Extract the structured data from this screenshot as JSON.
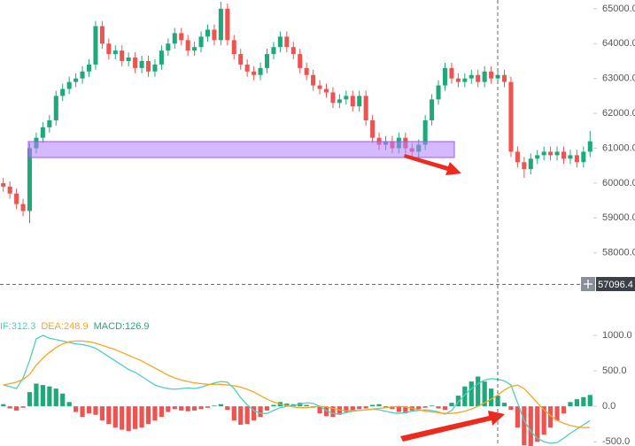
{
  "chart_data": [
    {
      "type": "candlestick",
      "open": [
        60000,
        59900,
        59700,
        59400,
        59200,
        61000,
        61300,
        61600,
        61800,
        62500,
        62700,
        62900,
        63000,
        63200,
        63400,
        64500,
        64000,
        63700,
        63800,
        63500,
        63600,
        63300,
        63500,
        63200,
        63400,
        63800,
        64000,
        64300,
        64100,
        63800,
        63900,
        64200,
        64400,
        64100,
        65000,
        64100,
        63700,
        63400,
        63200,
        63100,
        63300,
        63700,
        63900,
        64200,
        63900,
        63700,
        63300,
        63100,
        62800,
        62700,
        62600,
        62300,
        62400,
        62500,
        62200,
        62500,
        61800,
        61300,
        61100,
        61200,
        61000,
        61300,
        61000,
        60900,
        61100,
        61800,
        62400,
        62800,
        63300,
        63000,
        62900,
        63000,
        63100,
        62900,
        63200,
        63000,
        63100,
        62900,
        60900,
        60600,
        60400,
        60700,
        60800,
        60900,
        60800,
        60900,
        60700,
        60800,
        60600,
        60900
      ],
      "high": [
        60150,
        60050,
        59850,
        59550,
        61150,
        61450,
        61750,
        61950,
        62650,
        62850,
        63050,
        63150,
        63350,
        63550,
        64650,
        64650,
        64150,
        63950,
        63950,
        63750,
        63750,
        63650,
        63650,
        63550,
        63950,
        64150,
        64450,
        64450,
        64250,
        64050,
        64350,
        64550,
        64550,
        65200,
        65150,
        64250,
        63850,
        63550,
        63350,
        63450,
        63850,
        64050,
        64350,
        64350,
        64050,
        63850,
        63450,
        63250,
        62950,
        62850,
        62750,
        62550,
        62650,
        62650,
        62650,
        62650,
        61950,
        61450,
        61350,
        61350,
        61450,
        61450,
        61150,
        61250,
        61950,
        62550,
        62950,
        63450,
        63450,
        63150,
        63150,
        63250,
        63250,
        63350,
        63350,
        63250,
        63250,
        63050,
        61050,
        60750,
        60850,
        60950,
        61050,
        61050,
        61050,
        61050,
        60950,
        60950,
        61050,
        61500
      ],
      "low": [
        59750,
        59550,
        59250,
        59050,
        58850,
        60850,
        61150,
        61450,
        61650,
        62350,
        62550,
        62750,
        62850,
        63050,
        63250,
        63850,
        63550,
        63550,
        63350,
        63350,
        63150,
        63150,
        63050,
        63050,
        63250,
        63650,
        63850,
        63950,
        63650,
        63650,
        63750,
        64050,
        63950,
        63950,
        63950,
        63550,
        63250,
        63050,
        62950,
        62950,
        63150,
        63550,
        63750,
        63750,
        63550,
        63150,
        62950,
        62650,
        62550,
        62450,
        62150,
        62150,
        62250,
        62050,
        62050,
        61650,
        61150,
        60950,
        60950,
        60850,
        60850,
        60850,
        60750,
        60600,
        60950,
        61650,
        62250,
        62650,
        62850,
        62750,
        62750,
        62850,
        62750,
        62750,
        62850,
        62850,
        62750,
        60750,
        60450,
        60150,
        60250,
        60550,
        60650,
        60650,
        60650,
        60550,
        60550,
        60450,
        60450,
        60750
      ],
      "close": [
        59900,
        59700,
        59400,
        59200,
        61000,
        61300,
        61600,
        61800,
        62500,
        62700,
        62900,
        63000,
        63200,
        63400,
        64500,
        64000,
        63700,
        63800,
        63500,
        63600,
        63300,
        63500,
        63200,
        63400,
        63800,
        64000,
        64300,
        64100,
        63800,
        63900,
        64200,
        64400,
        64100,
        65000,
        64100,
        63700,
        63400,
        63200,
        63100,
        63300,
        63700,
        63900,
        64200,
        63900,
        63700,
        63300,
        63100,
        62800,
        62700,
        62600,
        62300,
        62400,
        62500,
        62200,
        62500,
        61800,
        61300,
        61100,
        61200,
        61000,
        61300,
        61000,
        60900,
        61100,
        61800,
        62400,
        62800,
        63300,
        63000,
        62900,
        63000,
        63100,
        62900,
        63200,
        63000,
        63100,
        62900,
        60900,
        60600,
        60400,
        60700,
        60800,
        60900,
        60800,
        60900,
        60700,
        60800,
        60600,
        60900,
        61200
      ],
      "up_color": "#1fa97a",
      "down_color": "#ef5350",
      "ylim": [
        56750,
        65250
      ],
      "yticks": [
        {
          "value": 65000,
          "label": "65000.0"
        },
        {
          "value": 64000,
          "label": "64000.0"
        },
        {
          "value": 63000,
          "label": "63000.0"
        },
        {
          "value": 62000,
          "label": "62000.0"
        },
        {
          "value": 61000,
          "label": "61000.0"
        },
        {
          "value": 60000,
          "label": "60000.0"
        },
        {
          "value": 59000,
          "label": "59000.0"
        },
        {
          "value": 58000,
          "label": "58000.0"
        }
      ],
      "crosshair": 57096.4
    },
    {
      "type": "macd",
      "series": [
        {
          "name": "IF:312.3",
          "color": "#4fcfc0",
          "values": [
            300,
            280,
            250,
            400,
            650,
            950,
            1000,
            960,
            940,
            920,
            900,
            880,
            870,
            850,
            820,
            760,
            700,
            640,
            580,
            520,
            480,
            420,
            360,
            300,
            270,
            250,
            240,
            250,
            260,
            250,
            270,
            300,
            330,
            350,
            340,
            250,
            120,
            20,
            -60,
            -100,
            -100,
            -60,
            -20,
            0,
            10,
            30,
            50,
            40,
            0,
            -60,
            -100,
            -110,
            -90,
            -70,
            -60,
            -50,
            -40,
            -50,
            -70,
            -90,
            -100,
            -90,
            -70,
            -60,
            -50,
            -60,
            -80,
            -110,
            -60,
            60,
            160,
            250,
            320,
            370,
            390,
            380,
            360,
            300,
            50,
            -200,
            -350,
            -450,
            -500,
            -520,
            -510,
            -450,
            -380,
            -320,
            -260,
            -200
          ]
        },
        {
          "name": "DEA:248.9",
          "color": "#f5a623",
          "values": [
            300,
            320,
            340,
            380,
            450,
            580,
            680,
            760,
            830,
            880,
            910,
            920,
            920,
            910,
            890,
            860,
            830,
            800,
            760,
            720,
            680,
            640,
            590,
            540,
            490,
            440,
            400,
            370,
            350,
            330,
            320,
            310,
            310,
            310,
            300,
            290,
            270,
            240,
            200,
            150,
            100,
            60,
            30,
            10,
            -10,
            -20,
            -20,
            -10,
            0,
            -10,
            -30,
            -50,
            -60,
            -60,
            -60,
            -50,
            -40,
            -30,
            -20,
            -10,
            0,
            -10,
            -30,
            -50,
            -70,
            -80,
            -90,
            -100,
            -100,
            -90,
            -70,
            -40,
            0,
            50,
            100,
            160,
            230,
            280,
            300,
            250,
            150,
            50,
            -50,
            -130,
            -200,
            -240,
            -270,
            -290,
            -300,
            -300
          ]
        }
      ],
      "histogram": {
        "name": "MACD:126.9",
        "up_color": "#1fa97a",
        "down_color": "#ef5350",
        "values": [
          30,
          -30,
          -60,
          -20,
          200,
          320,
          300,
          280,
          250,
          180,
          60,
          -80,
          -150,
          -100,
          -120,
          -200,
          -250,
          -300,
          -330,
          -350,
          -320,
          -300,
          -250,
          -200,
          -150,
          -80,
          -40,
          -60,
          -70,
          -60,
          -40,
          -20,
          10,
          30,
          -50,
          -200,
          -260,
          -250,
          -200,
          -150,
          -60,
          20,
          60,
          40,
          30,
          50,
          20,
          -20,
          -100,
          -140,
          -150,
          -120,
          -80,
          -60,
          -40,
          -30,
          20,
          30,
          -20,
          -40,
          -80,
          -100,
          -60,
          -40,
          -20,
          10,
          -30,
          -50,
          50,
          150,
          280,
          350,
          420,
          350,
          250,
          150,
          50,
          -50,
          -300,
          -550,
          -600,
          -500,
          -400,
          -300,
          -200,
          -100,
          60,
          100,
          130,
          160
        ]
      },
      "ylim": [
        -560,
        1300
      ],
      "yticks": [
        {
          "value": 1000,
          "label": "1000.0"
        },
        {
          "value": 500,
          "label": "500.0"
        },
        {
          "value": 0,
          "label": "0.0"
        },
        {
          "value": -500,
          "label": "-500.0"
        }
      ]
    }
  ]
}
